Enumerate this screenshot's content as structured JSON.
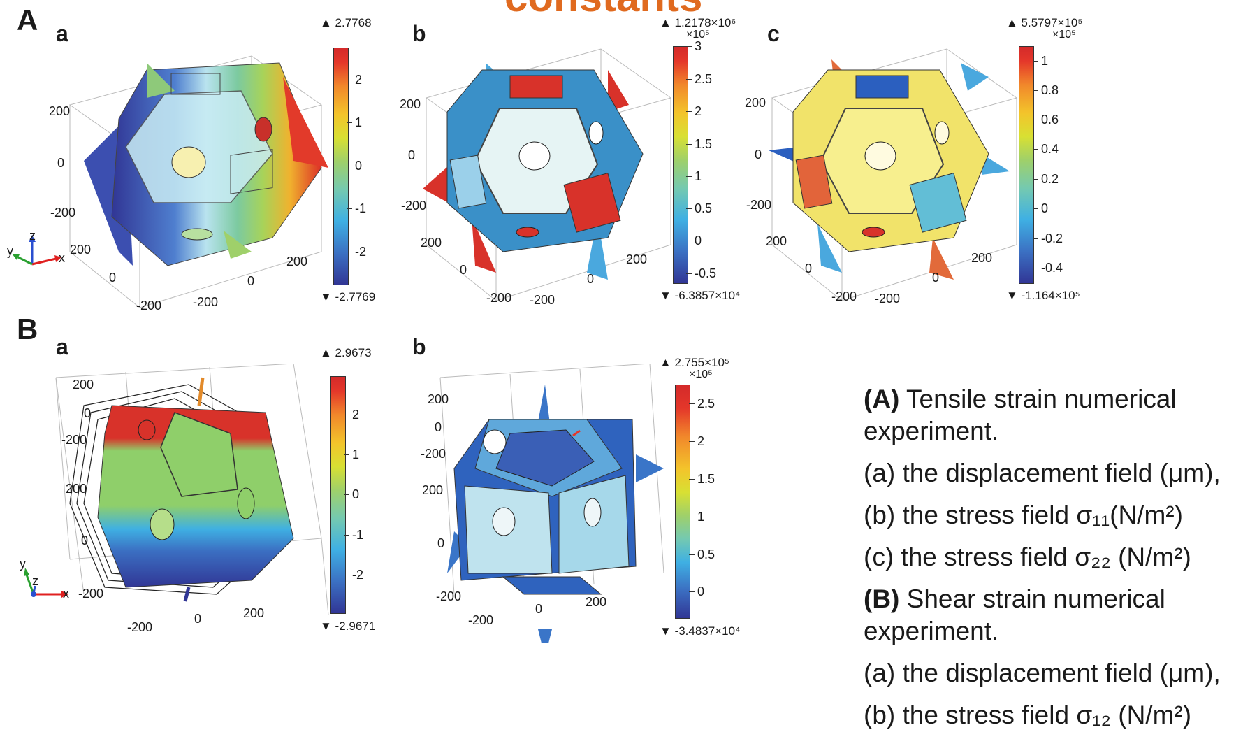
{
  "title_fragment": "constants",
  "section_A": {
    "label": "A",
    "panels": [
      {
        "label": "a",
        "colorbar": {
          "max_label": "▲ 2.7768",
          "min_label": "▼ -2.7769",
          "scale": "",
          "ticks": [
            "2",
            "1",
            "0",
            "-1",
            "-2"
          ]
        },
        "axis_ticks": [
          "200",
          "0",
          "-200",
          "200",
          "0",
          "-200",
          "200",
          "0",
          "-200"
        ]
      },
      {
        "label": "b",
        "colorbar": {
          "max_label": "▲ 1.2178×10⁶",
          "min_label": "▼ -6.3857×10⁴",
          "scale": "×10⁵",
          "ticks": [
            "3",
            "2.5",
            "2",
            "1.5",
            "1",
            "0.5",
            "0",
            "-0.5"
          ]
        },
        "axis_ticks": [
          "200",
          "0",
          "-200",
          "200",
          "0",
          "-200",
          "200",
          "0",
          "-200"
        ]
      },
      {
        "label": "c",
        "colorbar": {
          "max_label": "▲ 5.5797×10⁵",
          "min_label": "▼ -1.164×10⁵",
          "scale": "×10⁵",
          "ticks": [
            "1",
            "0.8",
            "0.6",
            "0.4",
            "0.2",
            "0",
            "-0.2",
            "-0.4"
          ]
        },
        "axis_ticks": [
          "200",
          "0",
          "-200",
          "200",
          "0",
          "-200",
          "200",
          "0",
          "-200"
        ]
      }
    ]
  },
  "section_B": {
    "label": "B",
    "panels": [
      {
        "label": "a",
        "colorbar": {
          "max_label": "▲ 2.9673",
          "min_label": "▼ -2.9671",
          "scale": "",
          "ticks": [
            "2",
            "1",
            "0",
            "-1",
            "-2"
          ]
        },
        "axis_ticks": [
          "200",
          "0",
          "-200",
          "200",
          "0",
          "-200",
          "-200",
          "0",
          "200"
        ]
      },
      {
        "label": "b",
        "colorbar": {
          "max_label": "▲ 2.755×10⁵",
          "min_label": "▼ -3.4837×10⁴",
          "scale": "×10⁵",
          "ticks": [
            "2.5",
            "2",
            "1.5",
            "1",
            "0.5",
            "0"
          ]
        },
        "axis_ticks": [
          "200",
          "0",
          "-200",
          "200",
          "0",
          "-200",
          "0",
          "200"
        ]
      }
    ]
  },
  "axes_triad": {
    "x": "x",
    "y": "y",
    "z": "z"
  },
  "caption": {
    "A_label": "(A)",
    "A_text": " Tensile strain numerical experiment.",
    "A_a": "(a) the displacement field (μm),",
    "A_b": "(b) the stress field σ₁₁(N/m²)",
    "A_c": "(c) the stress field σ₂₂ (N/m²)",
    "B_label": "(B)",
    "B_text": " Shear strain numerical experiment.",
    "B_a": "(a) the displacement field (μm),",
    "B_b": "(b) the stress field σ₁₂ (N/m²)"
  },
  "colors": {
    "title": "#e06a1f",
    "field_low": "#313695",
    "field_mid": "#9fd06a",
    "field_high": "#d42a2a"
  }
}
